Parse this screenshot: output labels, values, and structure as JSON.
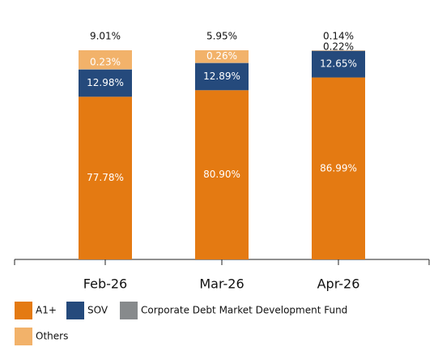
{
  "chart_data": {
    "type": "stacked_bar",
    "categories": [
      "Feb-26",
      "Mar-26",
      "Apr-26"
    ],
    "series": [
      {
        "name": "A1+",
        "color": "#e47a12",
        "values": [
          77.78,
          80.9,
          86.99
        ],
        "value_labels": [
          "77.78%",
          "80.90%",
          "86.99%"
        ]
      },
      {
        "name": "SOV",
        "color": "#254a7c",
        "values": [
          12.98,
          12.89,
          12.65
        ],
        "value_labels": [
          "12.98%",
          "12.89%",
          "12.65%"
        ]
      },
      {
        "name": "Corporate Debt Market Development Fund",
        "color": "#878a8c",
        "values": [
          0.23,
          0.26,
          0.22
        ],
        "value_labels": [
          "0.23%",
          "0.26%",
          "0.22%"
        ]
      },
      {
        "name": "Others",
        "color": "#f2b26a",
        "values": [
          9.01,
          5.95,
          0.14
        ],
        "value_labels": [
          "9.01%",
          "5.95%",
          "0.14%"
        ]
      }
    ]
  }
}
